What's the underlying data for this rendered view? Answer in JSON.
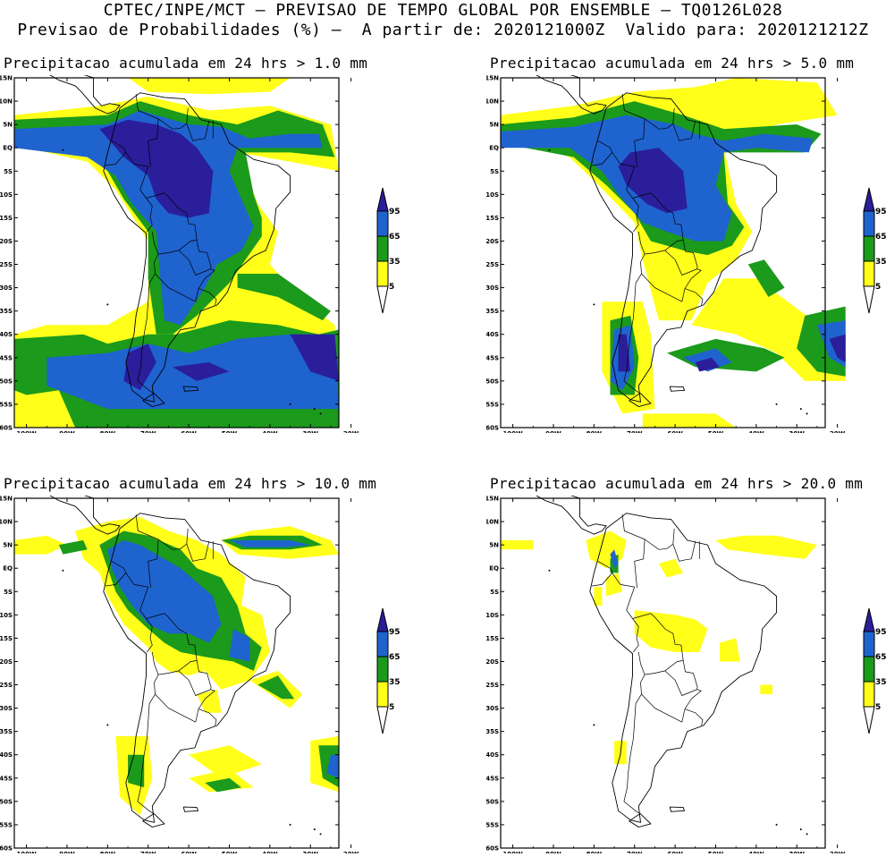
{
  "header": {
    "line1": "CPTEC/INPE/MCT – PREVISAO DE TEMPO GLOBAL POR ENSEMBLE – TQ0126L028",
    "line2": "Previsao de Probabilidades (%) –  A partir de: 2020121000Z  Valido para: 2020121212Z"
  },
  "panels": [
    {
      "title": "Precipitacao acumulada em 24 hrs > 1.0 mm"
    },
    {
      "title": "Precipitacao acumulada em 24 hrs > 5.0 mm"
    },
    {
      "title": "Precipitacao acumulada em 24 hrs > 10.0 mm"
    },
    {
      "title": "Precipitacao acumulada em 24 hrs > 20.0 mm"
    }
  ],
  "axes": {
    "lat_ticks": [
      "15N",
      "10N",
      "5N",
      "EQ",
      "5S",
      "10S",
      "15S",
      "20S",
      "25S",
      "30S",
      "35S",
      "40S",
      "45S",
      "50S",
      "55S",
      "60S"
    ],
    "lon_ticks": [
      "100W",
      "90W",
      "80W",
      "70W",
      "60W",
      "50W",
      "40W",
      "30W",
      "20W"
    ]
  },
  "legend": {
    "labels": [
      "95",
      "65",
      "35",
      "5"
    ],
    "colors": {
      "c95": "#2a1e9a",
      "c65": "#1f63cf",
      "c35": "#1b9a1b",
      "c5": "#ffff1a",
      "coast": "#000000"
    }
  }
}
